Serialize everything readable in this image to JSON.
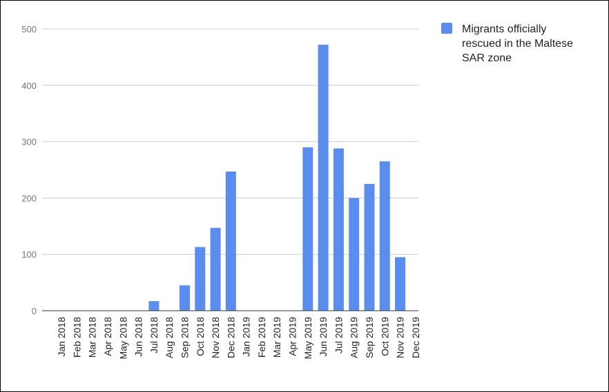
{
  "chart_data": {
    "type": "bar",
    "title": "",
    "xlabel": "",
    "ylabel": "",
    "ylim": [
      0,
      500
    ],
    "yticks": [
      0,
      100,
      200,
      300,
      400,
      500
    ],
    "grid": true,
    "legend_position": "right",
    "color": "#5B8DEE",
    "categories": [
      "Jan 2018",
      "Feb 2018",
      "Mar 2018",
      "Apr 2018",
      "May 2018",
      "Jun 2018",
      "Jul 2018",
      "Aug 2018",
      "Sep 2018",
      "Oct 2018",
      "Nov 2018",
      "Dec 2018",
      "Jan 2019",
      "Feb 2019",
      "Mar 2019",
      "Apr 2019",
      "May 2019",
      "Jun 2019",
      "Jul 2019",
      "Aug 2019",
      "Sep 2019",
      "Oct 2019",
      "Nov 2019",
      "Dec 2019"
    ],
    "series": [
      {
        "name": "Migrants officially rescued in the Maltese SAR zone",
        "legend_lines": [
          "Migrants officially",
          "rescued in the Maltese",
          "SAR zone"
        ],
        "values": [
          0,
          0,
          0,
          0,
          0,
          0,
          17,
          0,
          45,
          113,
          147,
          247,
          0,
          0,
          0,
          0,
          290,
          472,
          288,
          200,
          225,
          265,
          95,
          0
        ]
      }
    ]
  }
}
